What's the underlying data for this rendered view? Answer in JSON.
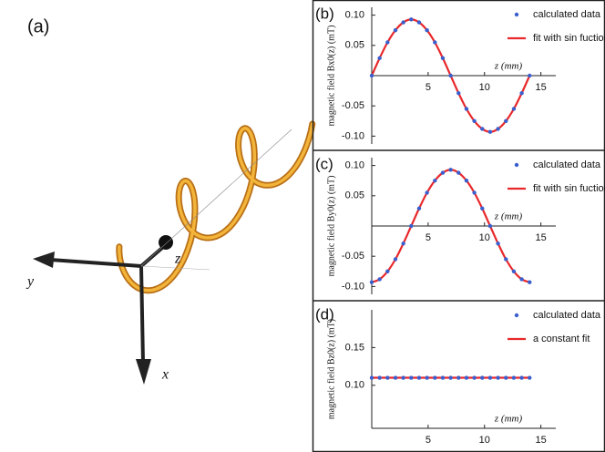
{
  "illustration": {
    "label": "(a)",
    "axis_labels": [
      "y",
      "z",
      "x"
    ]
  },
  "chart_data": [
    {
      "type": "line",
      "panel_label": "(b)",
      "ylabel": "magnetic field Bx0(z) (mT)",
      "xlabel": "z (mm)",
      "x": [
        0,
        0.7,
        1.4,
        2.1,
        2.8,
        3.5,
        4.2,
        4.9,
        5.6,
        6.3,
        7,
        7.7,
        8.4,
        9.1,
        9.8,
        10.5,
        11.2,
        11.9,
        12.6,
        13.3,
        14
      ],
      "series": [
        {
          "name": "calculated data",
          "mode": "markers",
          "color": "#3a5fcd",
          "values": [
            0,
            0.029,
            0.055,
            0.075,
            0.088,
            0.093,
            0.088,
            0.075,
            0.055,
            0.029,
            0,
            -0.029,
            -0.055,
            -0.075,
            -0.088,
            -0.093,
            -0.088,
            -0.075,
            -0.055,
            -0.029,
            0
          ]
        },
        {
          "name": "fit with sin fuction",
          "mode": "line",
          "color": "#e8282b",
          "values": [
            0,
            0.029,
            0.055,
            0.075,
            0.088,
            0.093,
            0.088,
            0.075,
            0.055,
            0.029,
            0,
            -0.029,
            -0.055,
            -0.075,
            -0.088,
            -0.093,
            -0.088,
            -0.075,
            -0.055,
            -0.029,
            0
          ]
        }
      ],
      "xlim": [
        0,
        16
      ],
      "xticks": [
        5,
        10,
        15
      ],
      "ylim": [
        -0.113,
        0.113
      ],
      "yticks": [
        {
          "value": 0.1,
          "label": "0.10"
        },
        0.05,
        -0.05,
        {
          "value": -0.1,
          "label": "-0.10"
        }
      ]
    },
    {
      "type": "line",
      "panel_label": "(c)",
      "ylabel": "magnetic field By0(z) (mT)",
      "xlabel": "z (mm)",
      "x": [
        0,
        0.7,
        1.4,
        2.1,
        2.8,
        3.5,
        4.2,
        4.9,
        5.6,
        6.3,
        7,
        7.7,
        8.4,
        9.1,
        9.8,
        10.5,
        11.2,
        11.9,
        12.6,
        13.3,
        14
      ],
      "series": [
        {
          "name": "calculated data",
          "mode": "markers",
          "color": "#3a5fcd",
          "values": [
            -0.093,
            -0.088,
            -0.075,
            -0.055,
            -0.029,
            0,
            0.029,
            0.055,
            0.075,
            0.088,
            0.093,
            0.088,
            0.075,
            0.055,
            0.029,
            0,
            -0.029,
            -0.055,
            -0.075,
            -0.088,
            -0.093
          ]
        },
        {
          "name": "fit with sin fuction",
          "mode": "line",
          "color": "#e8282b",
          "values": [
            -0.093,
            -0.088,
            -0.075,
            -0.055,
            -0.029,
            0,
            0.029,
            0.055,
            0.075,
            0.088,
            0.093,
            0.088,
            0.075,
            0.055,
            0.029,
            0,
            -0.029,
            -0.055,
            -0.075,
            -0.088,
            -0.093
          ]
        }
      ],
      "xlim": [
        0,
        16
      ],
      "xticks": [
        5,
        10,
        15
      ],
      "ylim": [
        -0.113,
        0.113
      ],
      "yticks": [
        {
          "value": 0.1,
          "label": "0.10"
        },
        0.05,
        -0.05,
        {
          "value": -0.1,
          "label": "-0.10"
        }
      ]
    },
    {
      "type": "line",
      "panel_label": "(d)",
      "ylabel": "magnetic field Bz0(z) (mT)",
      "xlabel": "z (mm)",
      "x": [
        0,
        0.7,
        1.4,
        2.1,
        2.8,
        3.5,
        4.2,
        4.9,
        5.6,
        6.3,
        7,
        7.7,
        8.4,
        9.1,
        9.8,
        10.5,
        11.2,
        11.9,
        12.6,
        13.3,
        14
      ],
      "series": [
        {
          "name": "calculated data",
          "mode": "markers",
          "color": "#3a5fcd",
          "values": [
            0.11,
            0.11,
            0.11,
            0.11,
            0.11,
            0.11,
            0.11,
            0.11,
            0.11,
            0.11,
            0.11,
            0.11,
            0.11,
            0.11,
            0.11,
            0.11,
            0.11,
            0.11,
            0.11,
            0.11,
            0.11
          ]
        },
        {
          "name": "a constant fit",
          "mode": "line",
          "color": "#e8282b",
          "values": [
            0.11,
            0.11,
            0.11,
            0.11,
            0.11,
            0.11,
            0.11,
            0.11,
            0.11,
            0.11,
            0.11,
            0.11,
            0.11,
            0.11,
            0.11,
            0.11,
            0.11,
            0.11,
            0.11,
            0.11,
            0.11
          ]
        }
      ],
      "xlim": [
        0,
        16
      ],
      "xticks": [
        5,
        10,
        15
      ],
      "ylim": [
        0.043,
        0.2
      ],
      "yticks": [
        0.15,
        {
          "value": 0.1,
          "label": "0.10"
        }
      ]
    }
  ]
}
